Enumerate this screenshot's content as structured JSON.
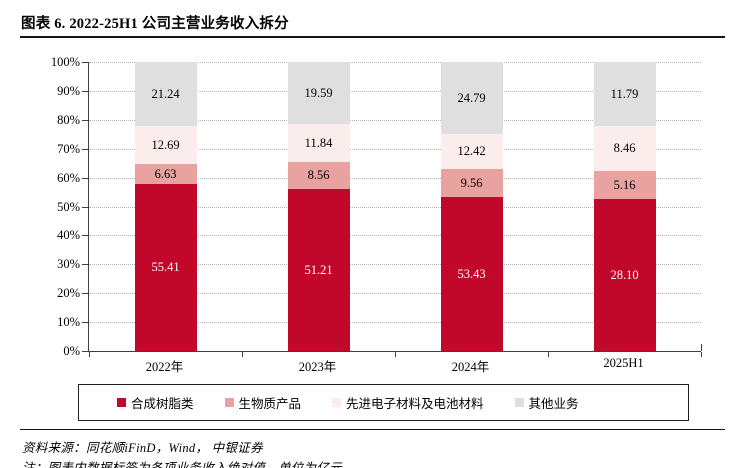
{
  "header": {
    "title": "图表 6. 2022-25H1 公司主营业务收入拆分"
  },
  "chart_data": {
    "type": "bar",
    "subtype": "stacked-100-percent",
    "title": "图表 6. 2022-25H1 公司主营业务收入拆分",
    "xlabel": "",
    "ylabel": "",
    "categories": [
      "2022年",
      "2023年",
      "2024年",
      "2025H1"
    ],
    "series": [
      {
        "name": "合成树脂类",
        "color": "#C1082B",
        "label_color": "#ffffff",
        "values": [
          55.41,
          51.21,
          53.43,
          28.1
        ]
      },
      {
        "name": "生物质产品",
        "color": "#E8A3A0",
        "label_color": "#000000",
        "values": [
          6.63,
          8.56,
          9.56,
          5.16
        ]
      },
      {
        "name": "先进电子材料及电池材料",
        "color": "#FAEDEB",
        "label_color": "#000000",
        "values": [
          12.69,
          11.84,
          12.42,
          8.46
        ]
      },
      {
        "name": "其他业务",
        "color": "#DFDFDF",
        "label_color": "#000000",
        "values": [
          21.24,
          19.59,
          24.79,
          11.79
        ]
      }
    ],
    "y_ticks": [
      "0%",
      "10%",
      "20%",
      "30%",
      "40%",
      "50%",
      "60%",
      "70%",
      "80%",
      "90%",
      "100%"
    ],
    "ylim": [
      0,
      100
    ],
    "grid": "dotted-horizontal",
    "legend_position": "bottom-boxed",
    "data_labels": "absolute values in 亿元"
  },
  "footer": {
    "source": "资料来源：同花顺iFinD，Wind， 中银证券",
    "note": "注：图表内数据标签为各项业务收入绝对值，单位为亿元"
  }
}
